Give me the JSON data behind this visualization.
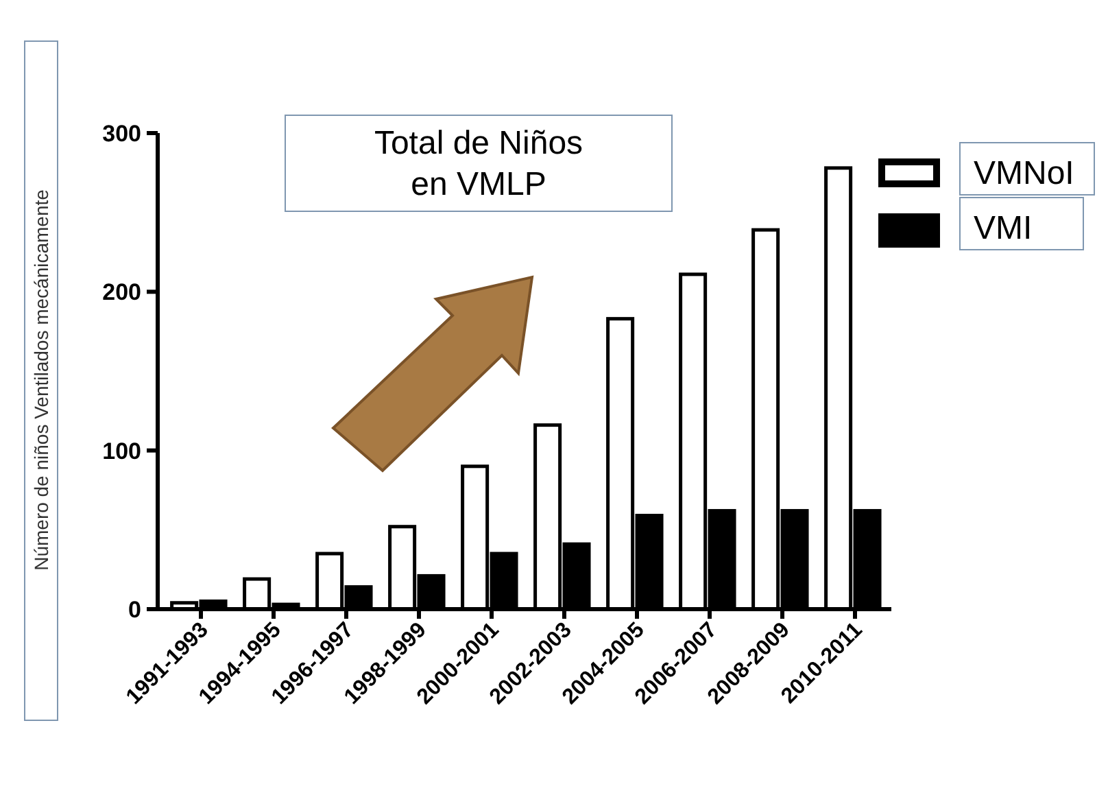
{
  "chart_data": {
    "type": "bar",
    "title": "Total de Niños\nen VMLP",
    "ylabel": "Número de niños Ventilados mecánicamente",
    "categories": [
      "1991-1993",
      "1994-1995",
      "1996-1997",
      "1998-1999",
      "2000-2001",
      "2002-2003",
      "2004-2005",
      "2006-2007",
      "2008-2009",
      "2010-2011"
    ],
    "series": [
      {
        "name": "VMNoI",
        "color": "#ffffff",
        "values": [
          4,
          19,
          35,
          52,
          90,
          116,
          183,
          211,
          239,
          278
        ]
      },
      {
        "name": "VMI",
        "color": "#000000",
        "values": [
          5,
          3,
          14,
          21,
          35,
          41,
          59,
          62,
          62,
          62
        ]
      }
    ],
    "ylim": [
      0,
      300
    ],
    "yticks": [
      0,
      100,
      200,
      300
    ],
    "legend": "top right"
  }
}
